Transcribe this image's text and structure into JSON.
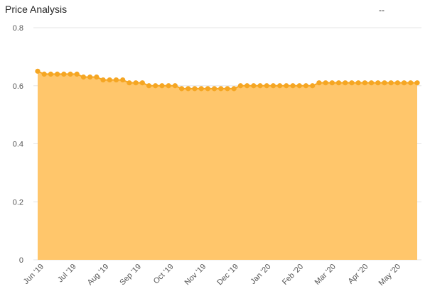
{
  "header": {
    "title": "Price Analysis",
    "status": "--"
  },
  "chart_data": {
    "type": "area",
    "title": "Price Analysis",
    "xlabel": "",
    "ylabel": "",
    "ylim": [
      0,
      0.8
    ],
    "yticks": [
      "0",
      "0.2",
      "0.4",
      "0.6",
      "0.8"
    ],
    "xticks": [
      "Jun '19",
      "Jul '19",
      "Aug '19",
      "Sep '19",
      "Oct '19",
      "Nov '19",
      "Dec '19",
      "Jan '20",
      "Feb '20",
      "Mar '20",
      "Apr '20",
      "May '20"
    ],
    "grid": true,
    "legend": "none",
    "series": [
      {
        "color": "#F5A623",
        "fill": "#FFC66B",
        "values": [
          0.65,
          0.64,
          0.64,
          0.64,
          0.64,
          0.64,
          0.64,
          0.63,
          0.63,
          0.63,
          0.62,
          0.62,
          0.62,
          0.62,
          0.61,
          0.61,
          0.61,
          0.6,
          0.6,
          0.6,
          0.6,
          0.6,
          0.59,
          0.59,
          0.59,
          0.59,
          0.59,
          0.59,
          0.59,
          0.59,
          0.59,
          0.6,
          0.6,
          0.6,
          0.6,
          0.6,
          0.6,
          0.6,
          0.6,
          0.6,
          0.6,
          0.6,
          0.6,
          0.61,
          0.61,
          0.61,
          0.61,
          0.61,
          0.61,
          0.61,
          0.61,
          0.61,
          0.61,
          0.61,
          0.61,
          0.61,
          0.61,
          0.61,
          0.61
        ]
      }
    ]
  }
}
